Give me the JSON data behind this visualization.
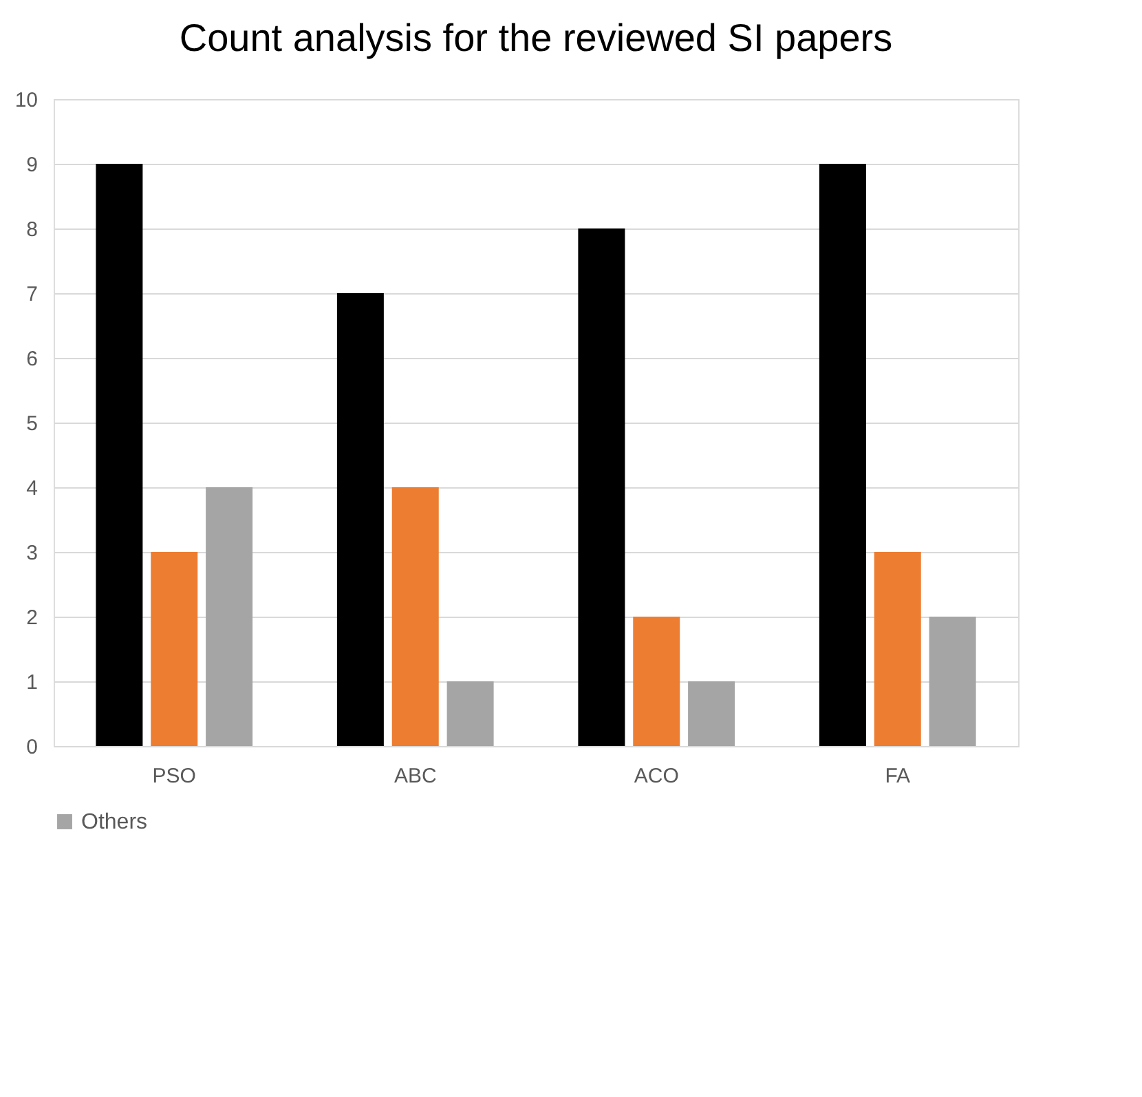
{
  "chart_data": {
    "type": "bar",
    "title": "Count analysis for the reviewed SI papers",
    "categories": [
      "PSO",
      "ABC",
      "ACO",
      "FA"
    ],
    "series": [
      {
        "color": "#000000",
        "values": [
          9,
          7,
          8,
          9
        ]
      },
      {
        "color": "#ed7d31",
        "values": [
          3,
          4,
          2,
          3
        ]
      },
      {
        "name": "Others",
        "color": "#a5a5a5",
        "values": [
          4,
          1,
          1,
          2
        ]
      }
    ],
    "ylim": [
      0,
      10
    ],
    "yticks": [
      0,
      1,
      2,
      3,
      4,
      5,
      6,
      7,
      8,
      9,
      10
    ],
    "grid": "y",
    "legend": "bottom"
  }
}
